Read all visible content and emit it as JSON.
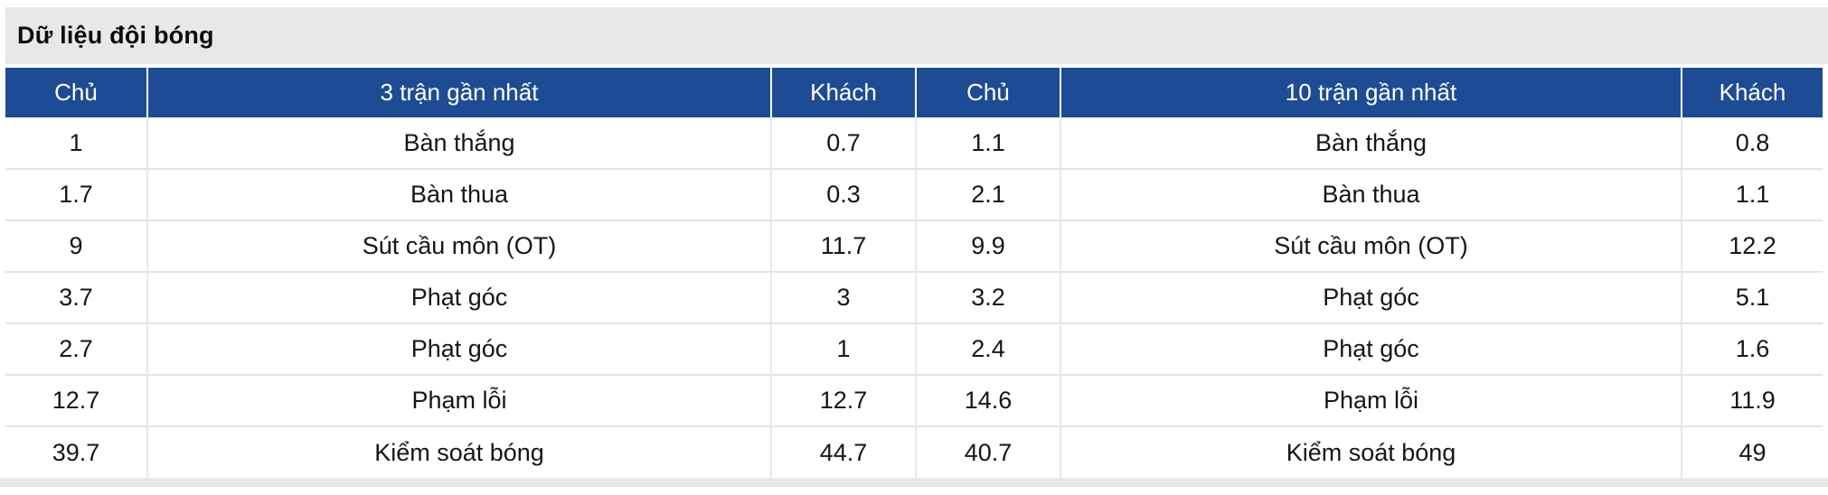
{
  "title": "Dữ liệu đội bóng",
  "colors": {
    "header_bg": "#1e4c94",
    "header_text": "#ffffff",
    "band_bg": "#e8e8e8",
    "row_divider": "#e4e4e4",
    "body_text": "#161616"
  },
  "table": {
    "headers": [
      "Chủ",
      "3 trận gần nhất",
      "Khách",
      "Chủ",
      "10 trận gần nhất",
      "Khách"
    ],
    "rows": [
      [
        "1",
        "Bàn thắng",
        "0.7",
        "1.1",
        "Bàn thắng",
        "0.8"
      ],
      [
        "1.7",
        "Bàn thua",
        "0.3",
        "2.1",
        "Bàn thua",
        "1.1"
      ],
      [
        "9",
        "Sút cầu môn (OT)",
        "11.7",
        "9.9",
        "Sút cầu môn (OT)",
        "12.2"
      ],
      [
        "3.7",
        "Phạt góc",
        "3",
        "3.2",
        "Phạt góc",
        "5.1"
      ],
      [
        "2.7",
        "Phạt góc",
        "1",
        "2.4",
        "Phạt góc",
        "1.6"
      ],
      [
        "12.7",
        "Phạm lỗi",
        "12.7",
        "14.6",
        "Phạm lỗi",
        "11.9"
      ],
      [
        "39.7",
        "Kiểm soát bóng",
        "44.7",
        "40.7",
        "Kiểm soát bóng",
        "49"
      ]
    ]
  }
}
